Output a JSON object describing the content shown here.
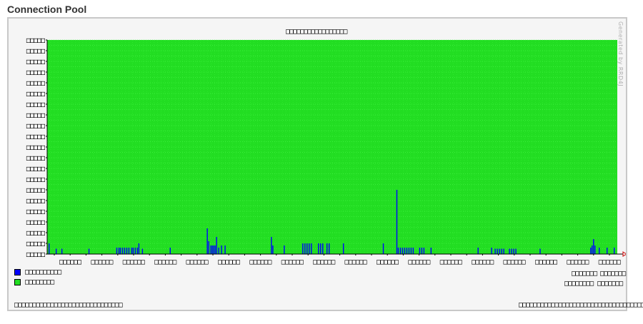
{
  "header": {
    "title": "Connection Pool"
  },
  "chart": {
    "title": "□□□□□□□□□□□□□□□□□",
    "watermark": "Generated by RRD4J",
    "legend": [
      {
        "label": "□□□□□□□□□□",
        "color": "#0000ff"
      },
      {
        "label": "□□□□□□□□",
        "color": "#22dd22"
      }
    ],
    "stats": [
      [
        "□□□□□□□",
        "□□□□□□□"
      ],
      [
        "□□□□□□□□",
        "□□□□□□□"
      ]
    ],
    "footer_left": "□□□□□□□□□□□□□□□□□□□□□□□□□□□□□□",
    "footer_right": "□□□□□□□□□□□□□□□□□□□□□□□□□□□□□□□□□□□□□□□"
  },
  "chart_data": {
    "type": "area",
    "title": "□□□□□□□□□□□□□□□□□",
    "xlabel": "",
    "ylabel": "",
    "ylim": [
      0,
      20
    ],
    "grid": true,
    "y_tick_labels": [
      "□□□□□",
      "□□□□□",
      "□□□□□",
      "□□□□□",
      "□□□□□",
      "□□□□□",
      "□□□□□",
      "□□□□□",
      "□□□□□",
      "□□□□□",
      "□□□□□",
      "□□□□□",
      "□□□□□",
      "□□□□□",
      "□□□□□",
      "□□□□□",
      "□□□□□",
      "□□□□□",
      "□□□□□",
      "□□□□□",
      "□□□□□"
    ],
    "x_tick_labels": [
      "□□□□□□",
      "□□□□□□",
      "□□□□□□",
      "□□□□□□",
      "□□□□□□",
      "□□□□□□",
      "□□□□□□",
      "□□□□□□",
      "□□□□□□",
      "□□□□□□",
      "□□□□□□",
      "□□□□□□",
      "□□□□□□",
      "□□□□□□",
      "□□□□□□",
      "□□□□□□",
      "□□□□□□",
      "□□□□□□"
    ],
    "x_range": [
      0,
      800
    ],
    "series": [
      {
        "color": "#22dd22",
        "fill": "full",
        "value": 20
      },
      {
        "color": "#0000ff",
        "values": [
          [
            2,
            1
          ],
          [
            12,
            0.5
          ],
          [
            20,
            0.5
          ],
          [
            58,
            0.5
          ],
          [
            97,
            0.6
          ],
          [
            100,
            0.6
          ],
          [
            102,
            0.6
          ],
          [
            105,
            0.6
          ],
          [
            108,
            0.6
          ],
          [
            111,
            0.6
          ],
          [
            114,
            0.6
          ],
          [
            118,
            0.6
          ],
          [
            120,
            0.6
          ],
          [
            123,
            0.6
          ],
          [
            126,
            0.6
          ],
          [
            128,
            1
          ],
          [
            133,
            0.5
          ],
          [
            172,
            0.6
          ],
          [
            224,
            2.4
          ],
          [
            226,
            1.2
          ],
          [
            229,
            0.8
          ],
          [
            231,
            0.8
          ],
          [
            233,
            0.8
          ],
          [
            235,
            0.8
          ],
          [
            237,
            1.6
          ],
          [
            240,
            0.6
          ],
          [
            244,
            0.8
          ],
          [
            249,
            0.8
          ],
          [
            314,
            1.6
          ],
          [
            316,
            0.8
          ],
          [
            332,
            0.8
          ],
          [
            358,
            1
          ],
          [
            361,
            1
          ],
          [
            364,
            1
          ],
          [
            367,
            1
          ],
          [
            370,
            1
          ],
          [
            380,
            1
          ],
          [
            383,
            1
          ],
          [
            386,
            1
          ],
          [
            392,
            1
          ],
          [
            395,
            1
          ],
          [
            415,
            1
          ],
          [
            471,
            1
          ],
          [
            490,
            6
          ],
          [
            492,
            0.6
          ],
          [
            495,
            0.6
          ],
          [
            498,
            0.6
          ],
          [
            501,
            0.6
          ],
          [
            504,
            0.6
          ],
          [
            507,
            0.6
          ],
          [
            510,
            0.6
          ],
          [
            513,
            0.6
          ],
          [
            522,
            0.6
          ],
          [
            525,
            0.6
          ],
          [
            528,
            0.6
          ],
          [
            538,
            0.6
          ],
          [
            604,
            0.6
          ],
          [
            623,
            0.6
          ],
          [
            628,
            0.5
          ],
          [
            631,
            0.5
          ],
          [
            634,
            0.5
          ],
          [
            637,
            0.5
          ],
          [
            640,
            0.5
          ],
          [
            648,
            0.5
          ],
          [
            651,
            0.5
          ],
          [
            654,
            0.5
          ],
          [
            657,
            0.5
          ],
          [
            691,
            0.5
          ],
          [
            762,
            0.6
          ],
          [
            764,
            0.8
          ],
          [
            766,
            1.4
          ],
          [
            768,
            0.8
          ],
          [
            774,
            0.6
          ],
          [
            785,
            0.6
          ],
          [
            795,
            0.6
          ]
        ]
      }
    ]
  }
}
